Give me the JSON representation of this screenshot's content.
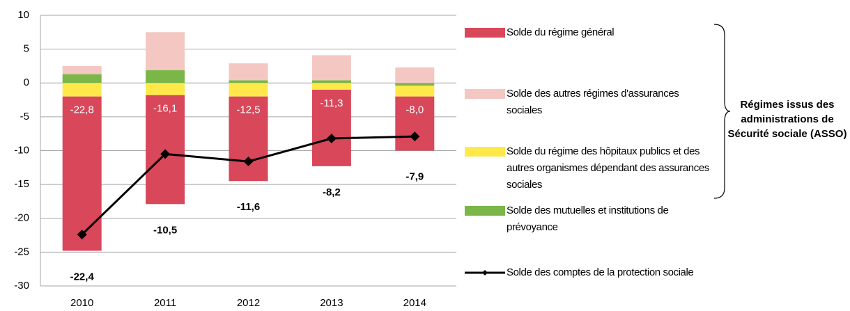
{
  "chart_data": {
    "type": "bar",
    "categories": [
      "2010",
      "2011",
      "2012",
      "2013",
      "2014"
    ],
    "series": [
      {
        "name": "Solde du régime général",
        "color": "#d9475a",
        "values": [
          -22.8,
          -16.1,
          -12.5,
          -11.3,
          -8.0
        ],
        "value_labels": [
          "-22,8",
          "-16,1",
          "-12,5",
          "-11,3",
          "-8,0"
        ]
      },
      {
        "name": "Solde des autres régimes d'assurances sociales",
        "color": "#f4c7c3",
        "values": [
          1.2,
          5.6,
          2.5,
          3.7,
          2.3
        ]
      },
      {
        "name": "Solde du régime des hôpitaux publics et des autres organismes dépendant des assurances sociales",
        "color": "#ffe94a",
        "values": [
          -2.0,
          -1.8,
          -2.0,
          -1.0,
          -1.6
        ]
      },
      {
        "name": "Solde des mutuelles et institutions de prévoyance",
        "color": "#7ab648",
        "values": [
          1.3,
          1.9,
          0.4,
          0.4,
          -0.4
        ]
      },
      {
        "name": "Solde des comptes de la protection sociale",
        "type": "line",
        "color": "#000000",
        "values": [
          -22.4,
          -10.5,
          -11.6,
          -8.2,
          -7.9
        ],
        "value_labels": [
          "-22,4",
          "-10,5",
          "-11,6",
          "-8,2",
          "-7,9"
        ]
      }
    ],
    "annotation": "Régimes issus des administrations de Sécurité sociale (ASSO)",
    "ylim": [
      -30,
      10
    ],
    "yticks": [
      -30,
      -25,
      -20,
      -15,
      -10,
      -5,
      0,
      5,
      10
    ],
    "grid": true
  }
}
